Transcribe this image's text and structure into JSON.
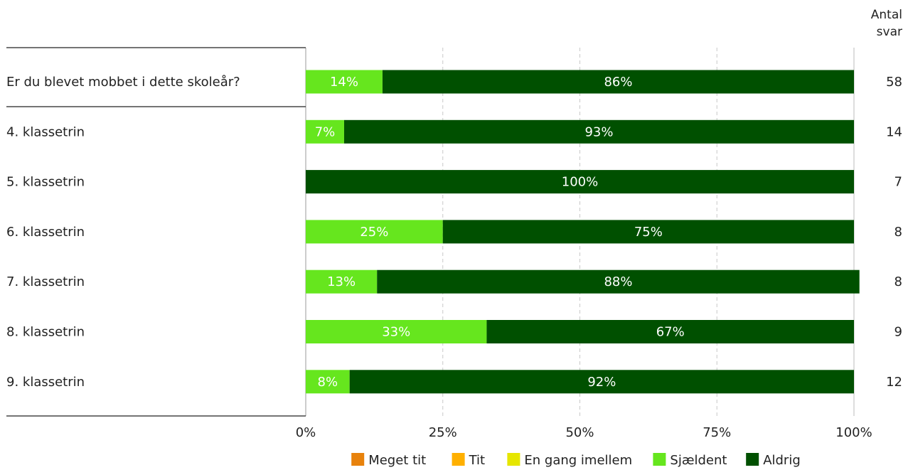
{
  "chart_data": {
    "type": "bar",
    "orientation": "horizontal",
    "stacked": true,
    "percent": true,
    "count_header": [
      "Antal",
      "svar"
    ],
    "categories": [
      "Er du blevet mobbet i dette skoleår?",
      "4. klassetrin",
      "5. klassetrin",
      "6. klassetrin",
      "7. klassetrin",
      "8. klassetrin",
      "9. klassetrin"
    ],
    "counts": [
      58,
      14,
      7,
      8,
      8,
      9,
      12
    ],
    "series": [
      {
        "name": "Meget tit",
        "color": "#E8820C",
        "values": [
          0,
          0,
          0,
          0,
          0,
          0,
          0
        ]
      },
      {
        "name": "Tit",
        "color": "#FFB000",
        "values": [
          0,
          0,
          0,
          0,
          0,
          0,
          0
        ]
      },
      {
        "name": "En gang imellem",
        "color": "#E6E600",
        "values": [
          0,
          0,
          0,
          0,
          0,
          0,
          0
        ]
      },
      {
        "name": "Sjældent",
        "color": "#66E61E",
        "values": [
          14,
          7,
          0,
          25,
          13,
          33,
          8
        ]
      },
      {
        "name": "Aldrig",
        "color": "#005000",
        "values": [
          86,
          93,
          100,
          75,
          88,
          67,
          92
        ]
      }
    ],
    "x_ticks": [
      "0%",
      "25%",
      "50%",
      "75%",
      "100%"
    ],
    "xlim": [
      0,
      100
    ],
    "grid": true,
    "legend_position": "bottom"
  }
}
